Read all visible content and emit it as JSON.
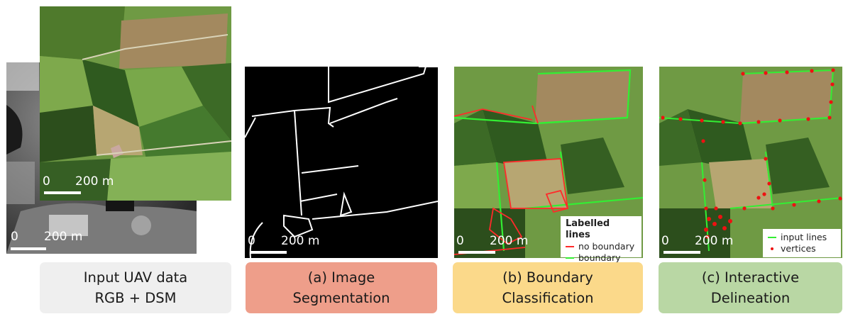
{
  "scale_text": "200 m",
  "scale_zero": "0",
  "stages": [
    {
      "line1": "Input UAV data",
      "line2": "RGB + DSM",
      "color": "#efefef"
    },
    {
      "line1": "(a) Image",
      "line2": "Segmentation",
      "color": "#ee9e8a"
    },
    {
      "line1": "(b) Boundary",
      "line2": "Classification",
      "color": "#fbd98a"
    },
    {
      "line1": "(c) Interactive",
      "line2": "Delineation",
      "color": "#b9d7a4"
    }
  ],
  "legend_b": {
    "title": "Labelled lines",
    "items": [
      {
        "label": "no boundary",
        "color": "#ff2a2a"
      },
      {
        "label": "boundary",
        "color": "#33ee33"
      }
    ]
  },
  "legend_c": {
    "items": [
      {
        "label": "input lines",
        "color": "#33ee33"
      },
      {
        "label": "vertices",
        "color": "#ee1111"
      }
    ]
  }
}
